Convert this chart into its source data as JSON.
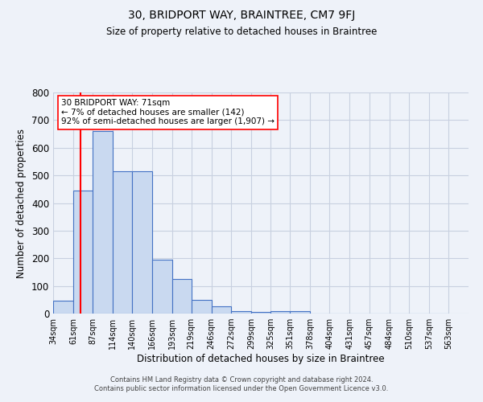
{
  "title": "30, BRIDPORT WAY, BRAINTREE, CM7 9FJ",
  "subtitle": "Size of property relative to detached houses in Braintree",
  "xlabel": "Distribution of detached houses by size in Braintree",
  "ylabel": "Number of detached properties",
  "annotation_line1": "30 BRIDPORT WAY: 71sqm",
  "annotation_line2": "← 7% of detached houses are smaller (142)",
  "annotation_line3": "92% of semi-detached houses are larger (1,907) →",
  "footer_line1": "Contains HM Land Registry data © Crown copyright and database right 2024.",
  "footer_line2": "Contains public sector information licensed under the Open Government Licence v3.0.",
  "bar_left_edges": [
    34,
    61,
    87,
    114,
    140,
    166,
    193,
    219,
    246,
    272,
    299,
    325,
    351,
    378,
    404,
    431,
    457,
    484,
    510,
    537
  ],
  "bar_widths": [
    27,
    26,
    27,
    26,
    26,
    27,
    26,
    27,
    26,
    27,
    26,
    26,
    27,
    26,
    26,
    26,
    27,
    26,
    27,
    26
  ],
  "bar_heights": [
    48,
    445,
    660,
    515,
    515,
    195,
    124,
    50,
    25,
    10,
    5,
    10,
    8,
    0,
    0,
    0,
    0,
    0,
    0,
    0
  ],
  "bar_facecolor": "#c9d9f0",
  "bar_edgecolor": "#4472c4",
  "red_line_x": 71,
  "ylim": [
    0,
    800
  ],
  "yticks": [
    0,
    100,
    200,
    300,
    400,
    500,
    600,
    700,
    800
  ],
  "xtick_labels": [
    "34sqm",
    "61sqm",
    "87sqm",
    "114sqm",
    "140sqm",
    "166sqm",
    "193sqm",
    "219sqm",
    "246sqm",
    "272sqm",
    "299sqm",
    "325sqm",
    "351sqm",
    "378sqm",
    "404sqm",
    "431sqm",
    "457sqm",
    "484sqm",
    "510sqm",
    "537sqm",
    "563sqm"
  ],
  "xtick_positions": [
    34,
    61,
    87,
    114,
    140,
    166,
    193,
    219,
    246,
    272,
    299,
    325,
    351,
    378,
    404,
    431,
    457,
    484,
    510,
    537,
    563
  ],
  "bg_color": "#eef2f9",
  "grid_color": "#c8d0e0",
  "xlim_left": 34,
  "xlim_right": 590
}
